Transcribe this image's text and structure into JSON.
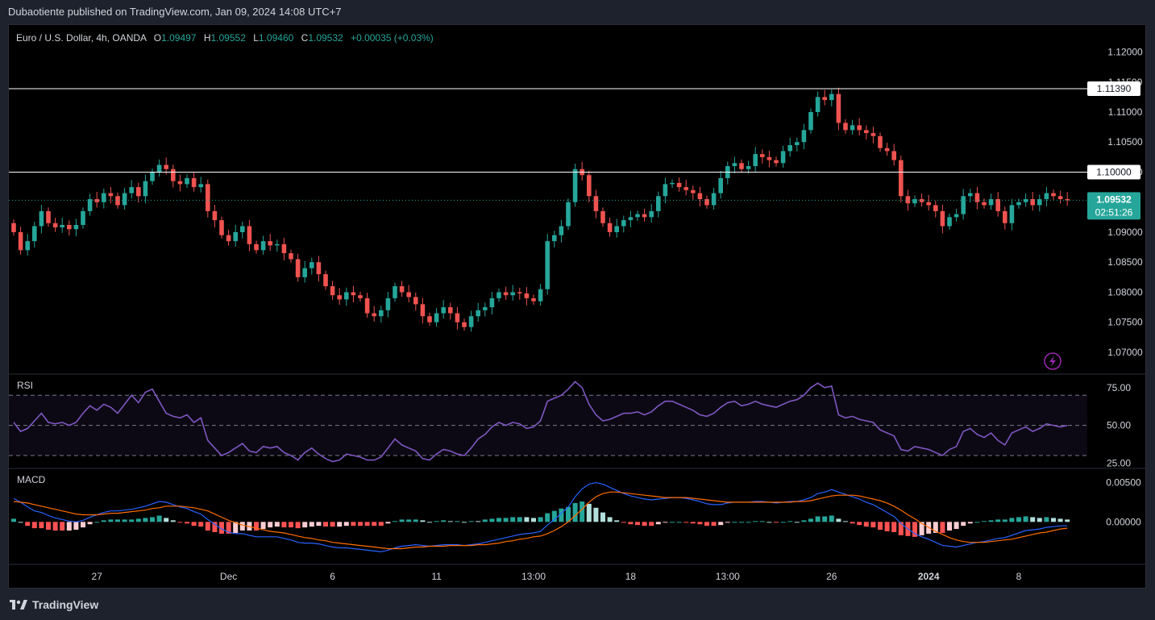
{
  "header": {
    "published_text": "Dubaotiente published on TradingView.com, Jan 09, 2024 14:08 UTC+7"
  },
  "legend": {
    "symbol": "Euro / U.S. Dollar, 4h, OANDA",
    "o_label": "O",
    "o_value": "1.09497",
    "h_label": "H",
    "h_value": "1.09552",
    "l_label": "L",
    "l_value": "1.09460",
    "c_label": "C",
    "c_value": "1.09532",
    "change": "+0.00035 (+0.03%)"
  },
  "footer": {
    "brand": "TradingView"
  },
  "colors": {
    "up": "#26a69a",
    "down": "#ef5350",
    "rsi_line": "#7e57c2",
    "macd_line": "#2962ff",
    "signal_line": "#ff6d00",
    "hist_up_strong": "#26a69a",
    "hist_up_weak": "#b2dfdb",
    "hist_down_strong": "#ff5252",
    "hist_down_weak": "#ffcdd2"
  },
  "chart_data": [
    {
      "type": "candlestick",
      "title": "Euro / U.S. Dollar, 4h, OANDA",
      "ylim": [
        1.0665,
        1.1245
      ],
      "y_ticks": [
        "1.12000",
        "1.11500",
        "1.11000",
        "1.10500",
        "1.10000",
        "1.09000",
        "1.08500",
        "1.08000",
        "1.07500",
        "1.07000"
      ],
      "x_ticks": [
        "27",
        "Dec",
        "6",
        "11",
        "13:00",
        "18",
        "13:00",
        "26",
        "2024",
        "8"
      ],
      "horizontal_lines": [
        {
          "value": 1.1139,
          "label": "1.11390"
        },
        {
          "value": 1.1,
          "label": "1.10000"
        }
      ],
      "last_price": {
        "value": 1.09532,
        "label": "1.09532",
        "countdown": "02:51:26"
      },
      "close": [
        1.09,
        1.087,
        1.0885,
        1.091,
        1.0935,
        1.0915,
        1.0908,
        1.0912,
        1.0905,
        1.0912,
        1.0935,
        1.0955,
        1.095,
        1.0965,
        1.096,
        1.0945,
        1.0965,
        1.0975,
        1.096,
        1.0985,
        1.1,
        1.1012,
        1.1005,
        1.0985,
        1.098,
        1.099,
        1.0975,
        1.098,
        1.0935,
        1.092,
        1.0895,
        1.0885,
        1.09,
        1.091,
        1.088,
        1.087,
        1.0885,
        1.0878,
        1.088,
        1.0865,
        1.0855,
        1.0825,
        1.084,
        1.085,
        1.083,
        1.081,
        1.0795,
        1.0788,
        1.08,
        1.0795,
        1.079,
        1.0765,
        1.076,
        1.077,
        1.079,
        1.081,
        1.08,
        1.0792,
        1.078,
        1.076,
        1.075,
        1.0765,
        1.0775,
        1.0765,
        1.075,
        1.0742,
        1.076,
        1.077,
        1.0775,
        1.079,
        1.08,
        1.0795,
        1.08,
        1.0798,
        1.079,
        1.0785,
        1.0805,
        1.0885,
        1.0895,
        1.091,
        1.095,
        1.1005,
        1.0995,
        1.096,
        1.0935,
        1.0915,
        1.09,
        1.091,
        1.092,
        1.0925,
        1.093,
        1.0925,
        1.0935,
        1.096,
        1.098,
        1.0982,
        1.0975,
        1.097,
        1.0965,
        1.0955,
        1.0945,
        1.0965,
        1.099,
        1.101,
        1.1015,
        1.1005,
        1.101,
        1.103,
        1.1025,
        1.102,
        1.1015,
        1.1035,
        1.1045,
        1.105,
        1.107,
        1.11,
        1.1125,
        1.112,
        1.113,
        1.1082,
        1.107,
        1.1078,
        1.107,
        1.1065,
        1.106,
        1.104,
        1.1035,
        1.102,
        1.096,
        1.0948,
        1.0955,
        1.095,
        1.0945,
        1.0935,
        1.091,
        1.0925,
        1.093,
        1.096,
        1.0965,
        1.095,
        1.0945,
        1.0955,
        1.0935,
        1.0915,
        1.0945,
        1.095,
        1.0955,
        1.0945,
        1.0955,
        1.0965,
        1.096,
        1.0955,
        1.0953
      ]
    },
    {
      "type": "line",
      "title": "RSI",
      "ylim": [
        22,
        84
      ],
      "y_ticks": [
        "75.00",
        "50.00",
        "25.00"
      ],
      "band": [
        30,
        70
      ],
      "midline": 50,
      "values": [
        52,
        46,
        48,
        53,
        58,
        52,
        51,
        52,
        50,
        52,
        58,
        63,
        60,
        64,
        62,
        58,
        64,
        70,
        65,
        72,
        74,
        66,
        58,
        56,
        55,
        57,
        52,
        55,
        40,
        35,
        30,
        32,
        35,
        38,
        33,
        32,
        36,
        35,
        36,
        32,
        30,
        27,
        32,
        35,
        31,
        28,
        26,
        27,
        31,
        30,
        29,
        27,
        27,
        29,
        35,
        41,
        37,
        35,
        33,
        28,
        27,
        31,
        34,
        33,
        31,
        30,
        35,
        41,
        44,
        49,
        52,
        50,
        52,
        51,
        48,
        49,
        53,
        66,
        68,
        70,
        74,
        79,
        75,
        64,
        57,
        53,
        54,
        56,
        58,
        58,
        59,
        57,
        59,
        63,
        66,
        66,
        64,
        62,
        60,
        57,
        56,
        58,
        62,
        65,
        66,
        63,
        64,
        66,
        64,
        63,
        62,
        64,
        66,
        67,
        70,
        75,
        78,
        75,
        76,
        57,
        55,
        56,
        54,
        53,
        52,
        47,
        45,
        43,
        34,
        33,
        36,
        35,
        34,
        32,
        30,
        34,
        36,
        46,
        48,
        44,
        42,
        45,
        40,
        37,
        45,
        47,
        49,
        46,
        48,
        51,
        50,
        49,
        50
      ]
    },
    {
      "type": "line",
      "title": "MACD",
      "ylim": [
        -0.0053,
        0.0068
      ],
      "y_ticks": [
        "0.00500",
        "0.00000"
      ],
      "series": [
        {
          "role": "macd",
          "values": [
            0.003,
            0.0025,
            0.0019,
            0.0014,
            0.0012,
            0.0008,
            0.0005,
            0.0003,
            0.0001,
            0.0,
            0.0002,
            0.0006,
            0.0009,
            0.0012,
            0.0014,
            0.0014,
            0.0015,
            0.0016,
            0.0018,
            0.002,
            0.0023,
            0.0026,
            0.0025,
            0.0022,
            0.0019,
            0.0017,
            0.0013,
            0.001,
            0.0003,
            -0.0003,
            -0.0009,
            -0.0013,
            -0.0015,
            -0.0015,
            -0.0017,
            -0.0019,
            -0.0019,
            -0.0019,
            -0.0019,
            -0.0021,
            -0.0023,
            -0.0026,
            -0.0027,
            -0.0027,
            -0.0028,
            -0.003,
            -0.0032,
            -0.0033,
            -0.0033,
            -0.0034,
            -0.0035,
            -0.0036,
            -0.0037,
            -0.0038,
            -0.0036,
            -0.0033,
            -0.0031,
            -0.003,
            -0.0029,
            -0.003,
            -0.0031,
            -0.003,
            -0.0029,
            -0.0029,
            -0.0029,
            -0.003,
            -0.0029,
            -0.0028,
            -0.0026,
            -0.0024,
            -0.0022,
            -0.002,
            -0.0018,
            -0.0016,
            -0.0015,
            -0.0014,
            -0.0012,
            -0.0004,
            0.0003,
            0.0011,
            0.0019,
            0.0032,
            0.0042,
            0.0048,
            0.005,
            0.0048,
            0.0044,
            0.004,
            0.0036,
            0.0033,
            0.0031,
            0.0029,
            0.0028,
            0.0029,
            0.003,
            0.0031,
            0.0031,
            0.003,
            0.0028,
            0.0026,
            0.0023,
            0.0022,
            0.0022,
            0.0024,
            0.0025,
            0.0025,
            0.0025,
            0.0026,
            0.0026,
            0.0025,
            0.0024,
            0.0025,
            0.0026,
            0.0026,
            0.0028,
            0.0031,
            0.0036,
            0.0038,
            0.0041,
            0.0038,
            0.0035,
            0.0032,
            0.0029,
            0.0025,
            0.0022,
            0.0017,
            0.0012,
            0.0007,
            -0.0002,
            -0.0009,
            -0.0015,
            -0.0019,
            -0.0022,
            -0.0026,
            -0.003,
            -0.0031,
            -0.0032,
            -0.003,
            -0.0028,
            -0.0026,
            -0.0025,
            -0.0023,
            -0.0021,
            -0.002,
            -0.0017,
            -0.0014,
            -0.0011,
            -0.001,
            -0.0009,
            -0.0007,
            -0.0006,
            -0.0005,
            -0.0005
          ]
        },
        {
          "role": "signal",
          "values": [
            0.0026,
            0.0025,
            0.0024,
            0.0022,
            0.002,
            0.0018,
            0.0016,
            0.0014,
            0.0012,
            0.001,
            0.0009,
            0.0009,
            0.0009,
            0.001,
            0.0011,
            0.0011,
            0.0012,
            0.0013,
            0.0014,
            0.0015,
            0.0017,
            0.0018,
            0.002,
            0.002,
            0.002,
            0.0019,
            0.0018,
            0.0016,
            0.0014,
            0.001,
            0.0006,
            0.0002,
            -0.0001,
            -0.0004,
            -0.0006,
            -0.0008,
            -0.001,
            -0.0012,
            -0.0013,
            -0.0014,
            -0.0016,
            -0.0018,
            -0.002,
            -0.0021,
            -0.0023,
            -0.0024,
            -0.0026,
            -0.0027,
            -0.0028,
            -0.0029,
            -0.003,
            -0.0031,
            -0.0032,
            -0.0033,
            -0.0034,
            -0.0034,
            -0.0034,
            -0.0033,
            -0.0032,
            -0.0032,
            -0.0031,
            -0.0031,
            -0.0031,
            -0.003,
            -0.003,
            -0.003,
            -0.003,
            -0.0029,
            -0.0029,
            -0.0028,
            -0.0027,
            -0.0025,
            -0.0024,
            -0.0022,
            -0.0021,
            -0.0019,
            -0.0018,
            -0.0015,
            -0.0011,
            -0.0006,
            0.0,
            0.0008,
            0.0016,
            0.0025,
            0.0032,
            0.0036,
            0.0038,
            0.0038,
            0.0037,
            0.0036,
            0.0035,
            0.0034,
            0.0033,
            0.0032,
            0.0031,
            0.0031,
            0.0031,
            0.0031,
            0.003,
            0.0029,
            0.0028,
            0.0027,
            0.0026,
            0.0025,
            0.0025,
            0.0025,
            0.0025,
            0.0025,
            0.0025,
            0.0025,
            0.0025,
            0.0025,
            0.0025,
            0.0026,
            0.0026,
            0.0027,
            0.0029,
            0.0031,
            0.0033,
            0.0034,
            0.0034,
            0.0034,
            0.0033,
            0.0031,
            0.0029,
            0.0027,
            0.0024,
            0.002,
            0.0015,
            0.0009,
            0.0004,
            -0.0002,
            -0.0007,
            -0.0012,
            -0.0016,
            -0.002,
            -0.0023,
            -0.0025,
            -0.0026,
            -0.0026,
            -0.0026,
            -0.0025,
            -0.0024,
            -0.0023,
            -0.0022,
            -0.002,
            -0.0018,
            -0.0016,
            -0.0014,
            -0.0013,
            -0.0011,
            -0.0009,
            -0.0008
          ]
        }
      ]
    }
  ]
}
